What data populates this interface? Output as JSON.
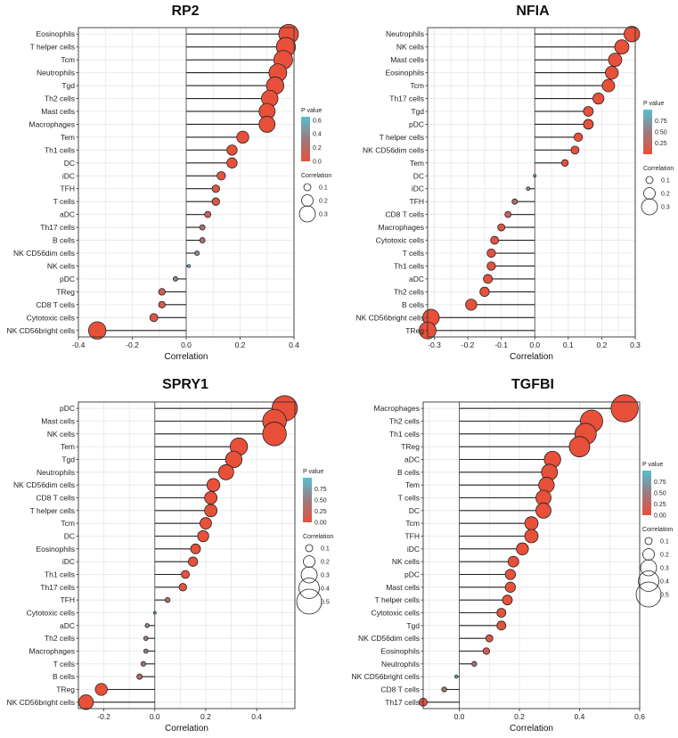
{
  "chart_data": [
    {
      "type": "lollipop",
      "title": "RP2",
      "xlabel": "Correlation",
      "xlim": [
        -0.4,
        0.4
      ],
      "xticks": [
        -0.4,
        -0.2,
        0.0,
        0.2,
        0.4
      ],
      "xtick_labels": [
        "-0.4",
        "-0.2",
        "0.0",
        "0.2",
        "0.4"
      ],
      "categories": [
        "Eosinophils",
        "T helper cells",
        "Tcm",
        "Neutrophils",
        "Tgd",
        "Th2 cells",
        "Mast cells",
        "Macrophages",
        "Tem",
        "Th1 cells",
        "DC",
        "iDC",
        "TFH",
        "T cells",
        "aDC",
        "Th17 cells",
        "B cells",
        "NK CD56dim cells",
        "NK cells",
        "pDC",
        "TReg",
        "CD8 T cells",
        "Cytotoxic cells",
        "NK CD56bright cells"
      ],
      "values": [
        0.38,
        0.37,
        0.36,
        0.34,
        0.33,
        0.31,
        0.3,
        0.3,
        0.21,
        0.17,
        0.17,
        0.13,
        0.11,
        0.11,
        0.08,
        0.06,
        0.06,
        0.04,
        0.01,
        -0.04,
        -0.09,
        -0.09,
        -0.12,
        -0.33
      ],
      "pvalues": [
        0,
        0,
        0,
        0,
        0,
        0,
        0,
        0,
        0,
        0.01,
        0.01,
        0.03,
        0.05,
        0.05,
        0.12,
        0.25,
        0.25,
        0.4,
        0.65,
        0.4,
        0.1,
        0.1,
        0.05,
        0
      ],
      "pvalue_legend": {
        "title": "P value",
        "ticks": [
          "0.6",
          "0.4",
          "0.2",
          "0.0"
        ],
        "range": [
          0,
          0.65
        ]
      },
      "size_legend": {
        "title": "Correlation",
        "values": [
          0.1,
          0.2,
          0.3
        ],
        "labels": [
          "0.1",
          "0.2",
          "0.3"
        ]
      }
    },
    {
      "type": "lollipop",
      "title": "NFIA",
      "xlabel": "Correlation",
      "xlim": [
        -0.32,
        0.3
      ],
      "xticks": [
        -0.3,
        -0.2,
        -0.1,
        0.0,
        0.1,
        0.2,
        0.3
      ],
      "xtick_labels": [
        "-0.3",
        "-0.2",
        "-0.1",
        "0.0",
        "0.1",
        "0.2",
        "0.3"
      ],
      "categories": [
        "Neutrophils",
        "NK cells",
        "Mast cells",
        "Eosinophils",
        "Tcm",
        "Th17 cells",
        "Tgd",
        "pDC",
        "T helper cells",
        "NK CD56dim cells",
        "Tem",
        "DC",
        "iDC",
        "TFH",
        "CD8 T cells",
        "Macrophages",
        "Cytotoxic cells",
        "T cells",
        "Th1 cells",
        "aDC",
        "Th2 cells",
        "B cells",
        "NK CD56bright cells",
        "TReg"
      ],
      "values": [
        0.29,
        0.26,
        0.24,
        0.23,
        0.22,
        0.19,
        0.16,
        0.16,
        0.13,
        0.12,
        0.09,
        0.0,
        -0.02,
        -0.06,
        -0.08,
        -0.1,
        -0.12,
        -0.13,
        -0.13,
        -0.14,
        -0.15,
        -0.19,
        -0.31,
        -0.32
      ],
      "pvalues": [
        0,
        0,
        0,
        0,
        0,
        0,
        0,
        0,
        0,
        0.01,
        0.03,
        0.95,
        0.7,
        0.4,
        0.2,
        0.1,
        0.06,
        0.05,
        0.05,
        0.04,
        0.03,
        0.01,
        0,
        0
      ],
      "pvalue_legend": {
        "title": "P value",
        "ticks": [
          "0.75",
          "0.50",
          "0.25"
        ],
        "range": [
          0,
          1.0
        ]
      },
      "size_legend": {
        "title": "Correlation",
        "values": [
          0.1,
          0.2,
          0.3
        ],
        "labels": [
          "0.1",
          "0.2",
          "0.3"
        ]
      }
    },
    {
      "type": "lollipop",
      "title": "SPRY1",
      "xlabel": "Correlation",
      "xlim": [
        -0.3,
        0.55
      ],
      "xticks": [
        -0.2,
        0.0,
        0.2,
        0.4
      ],
      "xtick_labels": [
        "-0.2",
        "0.0",
        "0.2",
        "0.4"
      ],
      "categories": [
        "pDC",
        "Mast cells",
        "NK cells",
        "Tem",
        "Tgd",
        "Neutrophils",
        "NK CD56dim cells",
        "CD8 T cells",
        "T helper cells",
        "Tcm",
        "DC",
        "Eosinophils",
        "iDC",
        "Th1 cells",
        "Th17 cells",
        "TFH",
        "Cytotoxic cells",
        "aDC",
        "Th2 cells",
        "Macrophages",
        "T cells",
        "B cells",
        "TReg",
        "NK CD56bright cells"
      ],
      "values": [
        0.51,
        0.47,
        0.47,
        0.33,
        0.31,
        0.28,
        0.23,
        0.22,
        0.22,
        0.2,
        0.19,
        0.16,
        0.15,
        0.12,
        0.11,
        0.05,
        0.0,
        -0.03,
        -0.035,
        -0.035,
        -0.045,
        -0.06,
        -0.21,
        -0.27
      ],
      "pvalues": [
        0,
        0,
        0,
        0,
        0,
        0,
        0,
        0,
        0,
        0,
        0,
        0,
        0.01,
        0.02,
        0.05,
        0.3,
        0.95,
        0.6,
        0.55,
        0.55,
        0.45,
        0.3,
        0,
        0
      ],
      "pvalue_legend": {
        "title": "P value",
        "ticks": [
          "0.75",
          "0.50",
          "0.25",
          "0.00"
        ],
        "range": [
          0,
          1.0
        ]
      },
      "size_legend": {
        "title": "Correlation",
        "values": [
          0.1,
          0.2,
          0.3,
          0.4,
          0.5
        ],
        "labels": [
          "0.1",
          "0.2",
          "0.3",
          "0.4",
          "0.5"
        ]
      }
    },
    {
      "type": "lollipop",
      "title": "TGFBI",
      "xlabel": "Correlation",
      "xlim": [
        -0.12,
        0.6
      ],
      "xticks": [
        0.0,
        0.2,
        0.4,
        0.6
      ],
      "xtick_labels": [
        "0.0",
        "0.2",
        "0.4",
        "0.6"
      ],
      "categories": [
        "Macrophages",
        "Th2 cells",
        "Th1 cells",
        "TReg",
        "aDC",
        "B cells",
        "Tem",
        "T cells",
        "DC",
        "Tcm",
        "TFH",
        "iDC",
        "NK cells",
        "pDC",
        "Mast cells",
        "T helper cells",
        "Cytotoxic cells",
        "Tgd",
        "NK CD56dim cells",
        "Eosinophils",
        "Neutrophils",
        "NK CD56bright cells",
        "CD8 T cells",
        "Th17 cells"
      ],
      "values": [
        0.55,
        0.44,
        0.42,
        0.4,
        0.31,
        0.3,
        0.29,
        0.28,
        0.28,
        0.24,
        0.24,
        0.21,
        0.18,
        0.17,
        0.17,
        0.16,
        0.14,
        0.14,
        0.1,
        0.09,
        0.05,
        -0.01,
        -0.05,
        -0.12
      ],
      "pvalues": [
        0,
        0,
        0,
        0,
        0,
        0,
        0,
        0,
        0,
        0,
        0,
        0,
        0.01,
        0.01,
        0.01,
        0.02,
        0.03,
        0.03,
        0.1,
        0.15,
        0.4,
        0.9,
        0.4,
        0.05
      ],
      "pvalue_legend": {
        "title": "P value",
        "ticks": [
          "0.75",
          "0.50",
          "0.25",
          "0.00"
        ],
        "range": [
          0,
          1.0
        ]
      },
      "size_legend": {
        "title": "Correlation",
        "values": [
          0.1,
          0.2,
          0.3,
          0.4,
          0.5
        ],
        "labels": [
          "0.1",
          "0.2",
          "0.3",
          "0.4",
          "0.5"
        ]
      }
    }
  ],
  "colors": {
    "low_p": "#e8503a",
    "mid_p": "#9c7a80",
    "high_p": "#56bfd0",
    "grid": "#e6e6e6",
    "frame": "#333333",
    "stem": "#222222",
    "point_stroke": "#222222"
  }
}
